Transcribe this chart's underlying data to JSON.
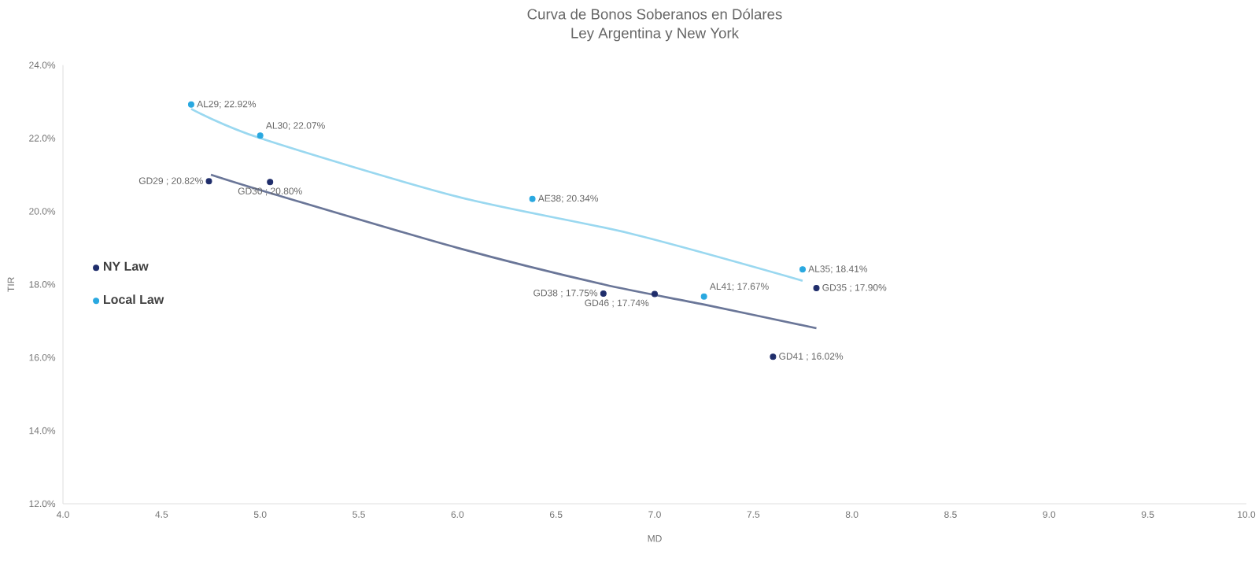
{
  "chart_data": {
    "type": "scatter",
    "title": "Curva de Bonos Soberanos en Dólares",
    "subtitle": "Ley Argentina y New York",
    "xlabel": "MD",
    "ylabel": "TIR",
    "xlim": [
      4.0,
      10.0
    ],
    "xticks": [
      {
        "value": 4,
        "label": "4.0"
      },
      {
        "value": 4.5,
        "label": "4.5"
      },
      {
        "value": 5,
        "label": "5.0"
      },
      {
        "value": 5.5,
        "label": "5.5"
      },
      {
        "value": 6,
        "label": "6.0"
      },
      {
        "value": 6.5,
        "label": "6.5"
      },
      {
        "value": 7,
        "label": "7.0"
      },
      {
        "value": 7.5,
        "label": "7.5"
      },
      {
        "value": 8,
        "label": "8.0"
      },
      {
        "value": 8.5,
        "label": "8.5"
      },
      {
        "value": 9,
        "label": "9.0"
      },
      {
        "value": 9.5,
        "label": "9.5"
      },
      {
        "value": 10,
        "label": "10.0"
      }
    ],
    "ylim": [
      12,
      24
    ],
    "yticks": [
      {
        "value": 12,
        "label": "12.0%"
      },
      {
        "value": 14,
        "label": "14.0%"
      },
      {
        "value": 16,
        "label": "16.0%"
      },
      {
        "value": 18,
        "label": "18.0%"
      },
      {
        "value": 20,
        "label": "20.0%"
      },
      {
        "value": 22,
        "label": "22.0%"
      },
      {
        "value": 24,
        "label": "24.0%"
      }
    ],
    "grid": false,
    "legend": "left",
    "marker": "circle",
    "series": [
      {
        "name": "NY Law",
        "color": "#1f2d6b",
        "x": [
          4.74,
          5.05,
          6.74,
          7.0,
          7.82,
          7.6
        ],
        "values": [
          20.82,
          20.8,
          17.75,
          17.74,
          17.9,
          16.02
        ],
        "value_labels": [
          "GD29 ; 20.82%",
          "GD30 ; 20.80%",
          "GD38 ; 17.75%",
          "GD46 ; 17.74%",
          "GD35 ; 17.90%",
          "GD41 ; 16.02%"
        ]
      },
      {
        "name": "Local Law",
        "color": "#29a8e0",
        "x": [
          4.65,
          5.0,
          6.38,
          7.25,
          7.75
        ],
        "values": [
          22.92,
          22.07,
          20.34,
          17.67,
          18.41
        ],
        "value_labels": [
          "AL29; 22.92%",
          "AL30; 22.07%",
          "AE38; 20.34%",
          "AL41; 17.67%",
          "AL35; 18.41%"
        ]
      },
      {
        "type": "line",
        "marker": "none",
        "color": "#6a7698",
        "x": [
          4.75,
          5.05,
          6.0,
          6.74,
          7.25,
          7.82
        ],
        "values": [
          21.0,
          20.5,
          19.0,
          18.0,
          17.45,
          16.8
        ]
      },
      {
        "type": "line",
        "marker": "none",
        "color": "#9ad8f0",
        "x": [
          4.65,
          5.0,
          6.0,
          6.87,
          7.75
        ],
        "values": [
          22.8,
          22.0,
          20.4,
          19.4,
          18.1
        ]
      }
    ]
  }
}
